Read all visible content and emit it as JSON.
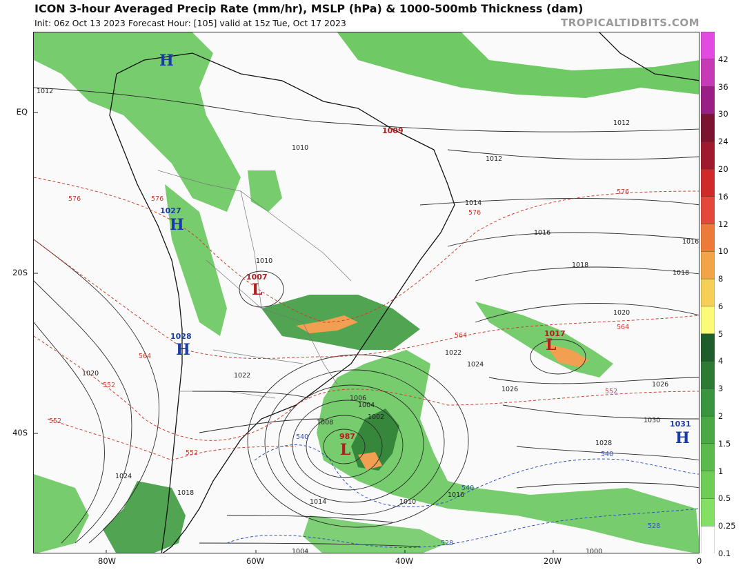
{
  "header": {
    "title": "ICON 3-hour Averaged Precip Rate (mm/hr), MSLP (hPa) & 1000-500mb Thickness (dam)",
    "subtitle": "Init: 06z Oct 13 2023   Forecast Hour: [105]   valid at 15z Tue, Oct 17 2023",
    "brand": "TROPICALTIDBITS.COM"
  },
  "axes": {
    "lat_labels": [
      "EQ",
      "20S",
      "40S"
    ],
    "lon_labels": [
      "80W",
      "60W",
      "40W",
      "20W",
      "0"
    ]
  },
  "colorbar": {
    "labels": [
      "42",
      "36",
      "30",
      "24",
      "20",
      "16",
      "12",
      "10",
      "8",
      "6",
      "5",
      "4",
      "3",
      "2",
      "1.5",
      "1",
      "0.5",
      "0.25",
      "0.1"
    ],
    "colors": [
      "#e24ae0",
      "#c63ab6",
      "#9a1f84",
      "#7a1430",
      "#a01a2e",
      "#cf2a2a",
      "#e3483a",
      "#ee7a3a",
      "#f3a447",
      "#f5cf56",
      "#fbfb7a",
      "#1e5e2a",
      "#2c7a34",
      "#3a963e",
      "#4aa845",
      "#5aba4c",
      "#6fcd56",
      "#84e062",
      "#ffffff"
    ]
  },
  "pressure_centers": [
    {
      "type": "H",
      "value": "",
      "color": "#1a3aa8"
    },
    {
      "type": "H",
      "value": "1027",
      "color": "#1a3aa8"
    },
    {
      "type": "H",
      "value": "1028",
      "color": "#1a3aa8"
    },
    {
      "type": "H",
      "value": "1031",
      "color": "#1a3aa8"
    },
    {
      "type": "L",
      "value": "1007",
      "color": "#b21e1e"
    },
    {
      "type": "L",
      "value": "1017",
      "color": "#b21e1e"
    },
    {
      "type": "L",
      "value": "987",
      "color": "#b21e1e"
    },
    {
      "type": "",
      "value": "1009",
      "color": "#b21e1e"
    }
  ],
  "isobar_labels": [
    "1012",
    "1012",
    "1010",
    "1010",
    "1012",
    "1014",
    "1016",
    "1016",
    "1018",
    "1018",
    "1020",
    "1022",
    "1024",
    "1026",
    "1026",
    "1028",
    "1030",
    "1008",
    "1006",
    "1004",
    "1002",
    "1000",
    "1004",
    "1010",
    "1014",
    "1016",
    "1018",
    "1020",
    "1022",
    "1024"
  ],
  "thickness_labels": [
    "576",
    "576",
    "576",
    "576",
    "564",
    "564",
    "564",
    "552",
    "552",
    "552",
    "552",
    "540",
    "540",
    "540",
    "528",
    "528"
  ]
}
